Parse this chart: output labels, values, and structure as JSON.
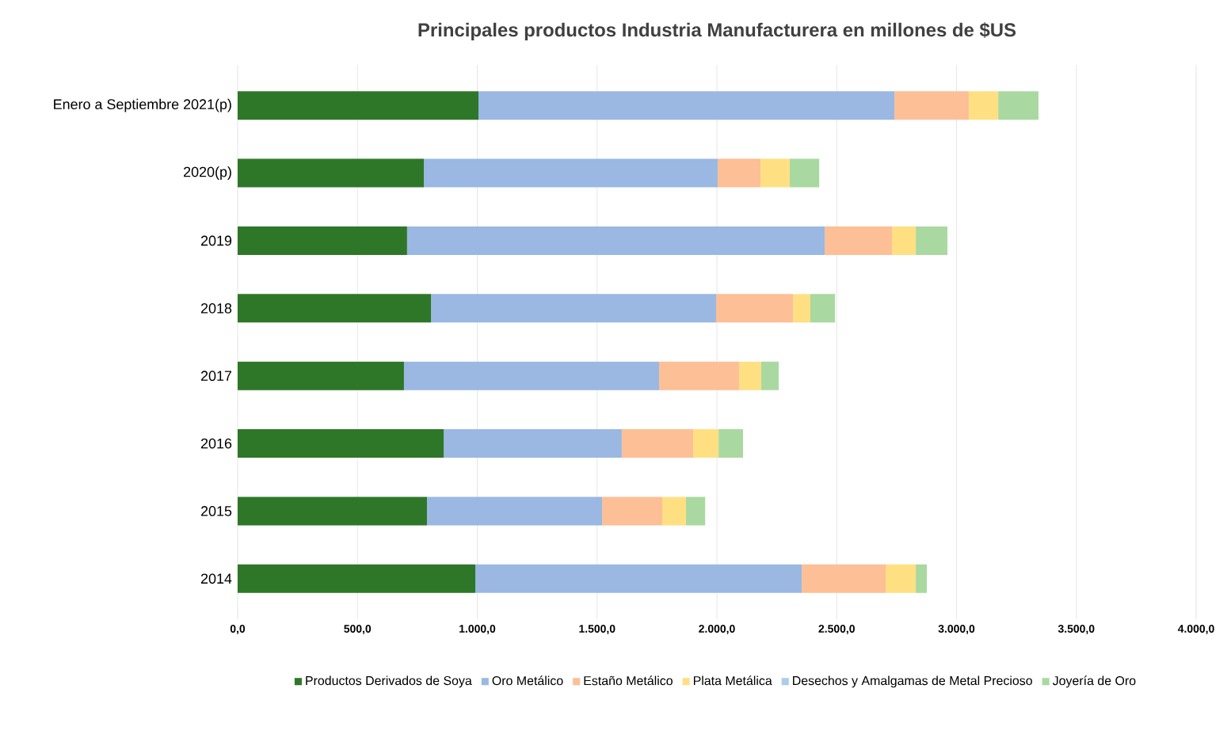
{
  "chart_data": {
    "type": "bar",
    "orientation": "horizontal",
    "stacked": true,
    "title": "Principales productos Industria Manufacturera en millones de $US",
    "categories": [
      "Enero a Septiembre 2021(p)",
      "2020(p)",
      "2019",
      "2018",
      "2017",
      "2016",
      "2015",
      "2014"
    ],
    "series": [
      {
        "name": "Productos Derivados de Soya",
        "color": "#2e7728",
        "values": [
          1005,
          777,
          707,
          807,
          694,
          860,
          790,
          992
        ]
      },
      {
        "name": "Oro Metálico",
        "color": "#9ab8e2",
        "values": [
          1736,
          1226,
          1743,
          1190,
          1065,
          743,
          731,
          1362
        ]
      },
      {
        "name": "Estaño Metálico",
        "color": "#fdbf96",
        "values": [
          310,
          179,
          281,
          321,
          334,
          298,
          251,
          350
        ]
      },
      {
        "name": "Plata Metálica",
        "color": "#fee083",
        "values": [
          123,
          122,
          99,
          72,
          92,
          106,
          99,
          126
        ]
      },
      {
        "name": "Desechos y Amalgamas de Metal Precioso",
        "color": "#a9cdea",
        "values": [
          0,
          0,
          0,
          0,
          0,
          0,
          0,
          0
        ]
      },
      {
        "name": "Joyería de Oro",
        "color": "#a9d9a0",
        "values": [
          168,
          123,
          132,
          103,
          73,
          102,
          80,
          46
        ]
      }
    ],
    "xlim": [
      0,
      4000
    ],
    "xticks": [
      {
        "value": 0,
        "label": "0,0"
      },
      {
        "value": 500,
        "label": "500,0"
      },
      {
        "value": 1000,
        "label": "1.000,0"
      },
      {
        "value": 1500,
        "label": "1.500,0"
      },
      {
        "value": 2000,
        "label": "2.000,0"
      },
      {
        "value": 2500,
        "label": "2.500,0"
      },
      {
        "value": 3000,
        "label": "3.000,0"
      },
      {
        "value": 3500,
        "label": "3.500,0"
      },
      {
        "value": 4000,
        "label": "4.000,0"
      }
    ],
    "grid": "x",
    "legend": "bottom"
  }
}
